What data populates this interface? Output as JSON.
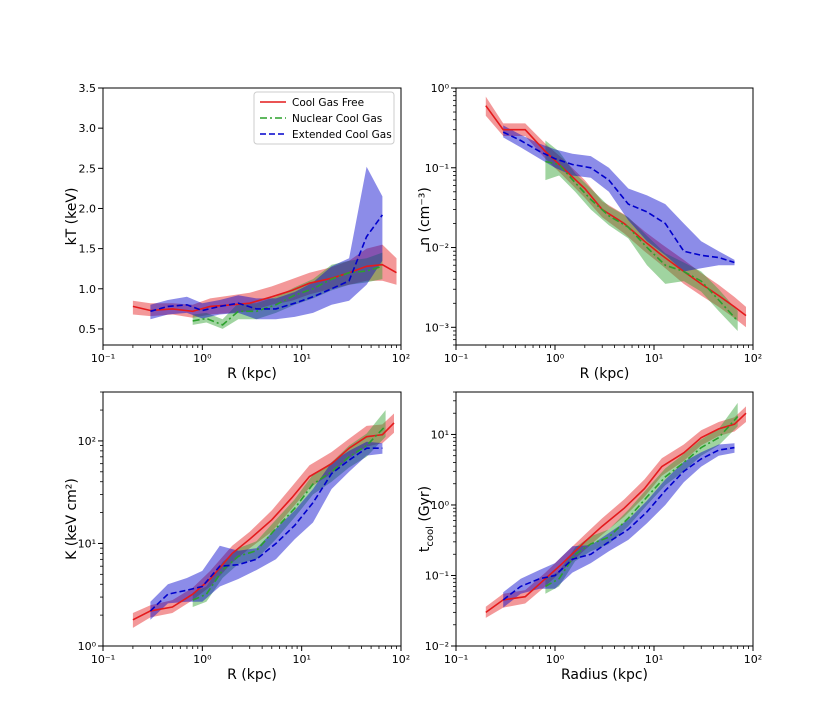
{
  "chart_data": [
    {
      "type": "line",
      "id": "kT",
      "xscale": "log",
      "yscale": "linear",
      "xlim": [
        0.1,
        100
      ],
      "ylim": [
        0.3,
        3.5
      ],
      "xlabel": "R (kpc)",
      "ylabel": "kT (keV)",
      "yticks": [
        0.5,
        1.0,
        1.5,
        2.0,
        2.5,
        3.0,
        3.5
      ],
      "ytick_labels": [
        "0.5",
        "1.0",
        "1.5",
        "2.0",
        "2.5",
        "3.0",
        "3.5"
      ],
      "legend": {
        "placement": "top-right",
        "entries": [
          {
            "label": "Cool Gas Free",
            "color": "#e41a1c",
            "dash": "solid"
          },
          {
            "label": "Nuclear Cool Gas",
            "color": "#2ca02c",
            "dash": "dashdot"
          },
          {
            "label": "Extended Cool Gas",
            "color": "#0000cc",
            "dash": "dashed"
          }
        ]
      },
      "series": [
        {
          "name": "Cool Gas Free",
          "color": "#e41a1c",
          "dash": "solid",
          "x": [
            0.2,
            0.3,
            0.5,
            0.8,
            1.2,
            2.0,
            3.0,
            5.0,
            8.0,
            12,
            20,
            30,
            45,
            65,
            90
          ],
          "y": [
            0.78,
            0.73,
            0.75,
            0.72,
            0.78,
            0.8,
            0.82,
            0.9,
            0.98,
            1.07,
            1.13,
            1.2,
            1.28,
            1.3,
            1.2
          ],
          "lo": [
            0.68,
            0.66,
            0.68,
            0.64,
            0.68,
            0.7,
            0.72,
            0.8,
            0.85,
            0.93,
            1.0,
            1.05,
            1.1,
            1.1,
            1.05
          ],
          "hi": [
            0.85,
            0.82,
            0.82,
            0.8,
            0.88,
            0.92,
            0.95,
            1.03,
            1.12,
            1.2,
            1.27,
            1.35,
            1.5,
            1.55,
            1.38
          ]
        },
        {
          "name": "Nuclear Cool Gas",
          "color": "#2ca02c",
          "dash": "dashdot",
          "x": [
            0.8,
            1.1,
            1.6,
            2.3,
            3.5,
            5.5,
            8.5,
            13,
            20,
            30,
            45,
            65
          ],
          "y": [
            0.6,
            0.63,
            0.55,
            0.72,
            0.72,
            0.8,
            0.92,
            1.0,
            1.12,
            1.2,
            1.22,
            1.28
          ],
          "lo": [
            0.55,
            0.58,
            0.5,
            0.62,
            0.62,
            0.7,
            0.8,
            0.88,
            0.98,
            1.05,
            1.08,
            1.12
          ],
          "hi": [
            0.68,
            0.7,
            0.62,
            0.82,
            0.82,
            0.9,
            1.02,
            1.12,
            1.3,
            1.35,
            1.38,
            1.45
          ]
        },
        {
          "name": "Extended Cool Gas",
          "color": "#0000cc",
          "dash": "dashed",
          "x": [
            0.3,
            0.45,
            0.7,
            1.0,
            1.5,
            2.3,
            3.5,
            5.5,
            8.5,
            13,
            20,
            30,
            45,
            65
          ],
          "y": [
            0.72,
            0.78,
            0.8,
            0.73,
            0.78,
            0.82,
            0.75,
            0.75,
            0.82,
            0.9,
            1.0,
            1.1,
            1.65,
            1.92
          ],
          "lo": [
            0.62,
            0.68,
            0.7,
            0.63,
            0.68,
            0.7,
            0.62,
            0.62,
            0.65,
            0.7,
            0.8,
            0.85,
            1.05,
            1.35
          ],
          "hi": [
            0.8,
            0.86,
            0.9,
            0.82,
            0.86,
            0.92,
            0.88,
            0.88,
            0.96,
            1.08,
            1.28,
            1.38,
            2.52,
            2.15
          ]
        }
      ]
    },
    {
      "type": "line",
      "id": "density",
      "xscale": "log",
      "yscale": "log",
      "xlim": [
        0.1,
        100
      ],
      "ylim": [
        0.0006,
        1
      ],
      "xlabel": "R (kpc)",
      "ylabel": "n (cm⁻³)",
      "yticks": [
        0.001,
        0.01,
        0.1,
        1
      ],
      "ytick_labels": [
        "10⁻³",
        "10⁻²",
        "10⁻¹",
        "10⁰"
      ],
      "series": [
        {
          "name": "Cool Gas Free",
          "color": "#e41a1c",
          "dash": "solid",
          "x": [
            0.2,
            0.3,
            0.5,
            0.8,
            1.2,
            2.0,
            3.0,
            5.0,
            8.0,
            12,
            20,
            30,
            45,
            65,
            85
          ],
          "y": [
            0.6,
            0.3,
            0.3,
            0.16,
            0.1,
            0.055,
            0.03,
            0.02,
            0.012,
            0.008,
            0.005,
            0.0035,
            0.0025,
            0.0018,
            0.0014
          ],
          "lo": [
            0.45,
            0.25,
            0.25,
            0.13,
            0.08,
            0.042,
            0.024,
            0.015,
            0.009,
            0.006,
            0.0035,
            0.0025,
            0.0018,
            0.0013,
            0.001
          ],
          "hi": [
            0.78,
            0.36,
            0.36,
            0.2,
            0.13,
            0.07,
            0.038,
            0.026,
            0.016,
            0.011,
            0.007,
            0.0048,
            0.0034,
            0.0024,
            0.0018
          ]
        },
        {
          "name": "Nuclear Cool Gas",
          "color": "#2ca02c",
          "dash": "dashdot",
          "x": [
            0.8,
            1.1,
            1.6,
            2.3,
            3.5,
            5.5,
            8.5,
            13,
            20,
            30,
            45,
            70
          ],
          "y": [
            0.12,
            0.11,
            0.065,
            0.04,
            0.025,
            0.018,
            0.01,
            0.006,
            0.005,
            0.0038,
            0.0022,
            0.0012
          ],
          "lo": [
            0.07,
            0.08,
            0.05,
            0.03,
            0.019,
            0.013,
            0.006,
            0.0035,
            0.0038,
            0.0028,
            0.0016,
            0.0009
          ],
          "hi": [
            0.22,
            0.16,
            0.085,
            0.055,
            0.033,
            0.024,
            0.014,
            0.0085,
            0.0065,
            0.005,
            0.003,
            0.0016
          ]
        },
        {
          "name": "Extended Cool Gas",
          "color": "#0000cc",
          "dash": "dashed",
          "x": [
            0.3,
            0.45,
            0.7,
            1.0,
            1.5,
            2.3,
            3.5,
            5.5,
            8.5,
            13,
            20,
            30,
            45,
            65
          ],
          "y": [
            0.28,
            0.22,
            0.16,
            0.13,
            0.11,
            0.1,
            0.07,
            0.035,
            0.028,
            0.02,
            0.009,
            0.008,
            0.0075,
            0.0065
          ],
          "lo": [
            0.24,
            0.18,
            0.13,
            0.1,
            0.08,
            0.075,
            0.05,
            0.022,
            0.012,
            0.008,
            0.005,
            0.0055,
            0.006,
            0.006
          ],
          "hi": [
            0.34,
            0.26,
            0.2,
            0.17,
            0.15,
            0.14,
            0.1,
            0.055,
            0.045,
            0.035,
            0.02,
            0.012,
            0.009,
            0.007
          ]
        }
      ]
    },
    {
      "type": "line",
      "id": "entropy",
      "xscale": "log",
      "yscale": "log",
      "xlim": [
        0.1,
        100
      ],
      "ylim": [
        1,
        300
      ],
      "xlabel": "R (kpc)",
      "ylabel": "K (keV cm²)",
      "yticks": [
        1,
        10,
        100
      ],
      "ytick_labels": [
        "10⁰",
        "10¹",
        "10²"
      ],
      "series": [
        {
          "name": "Cool Gas Free",
          "color": "#e41a1c",
          "dash": "solid",
          "x": [
            0.2,
            0.3,
            0.5,
            0.8,
            1.2,
            2.0,
            3.0,
            5.0,
            8.0,
            12,
            20,
            30,
            45,
            65,
            85
          ],
          "y": [
            1.8,
            2.2,
            2.4,
            3.2,
            4.5,
            8,
            11,
            17,
            28,
            45,
            60,
            85,
            110,
            115,
            150
          ],
          "lo": [
            1.5,
            1.9,
            2.1,
            2.8,
            3.8,
            6.5,
            9,
            13,
            22,
            35,
            48,
            68,
            88,
            95,
            120
          ],
          "hi": [
            2.1,
            2.5,
            2.8,
            3.7,
            5.4,
            9.5,
            13,
            21,
            36,
            58,
            78,
            105,
            140,
            145,
            185
          ]
        },
        {
          "name": "Nuclear Cool Gas",
          "color": "#2ca02c",
          "dash": "dashdot",
          "x": [
            0.8,
            1.1,
            1.6,
            2.3,
            3.5,
            5.5,
            8.5,
            13,
            20,
            30,
            45,
            70
          ],
          "y": [
            2.8,
            3.2,
            5.5,
            7.5,
            8.5,
            14,
            22,
            38,
            50,
            70,
            90,
            140
          ],
          "lo": [
            2.4,
            2.7,
            4.6,
            6.3,
            7,
            11,
            18,
            30,
            40,
            55,
            70,
            110
          ],
          "hi": [
            3.3,
            3.8,
            6.6,
            9,
            10.5,
            17,
            27,
            47,
            62,
            90,
            118,
            200
          ]
        },
        {
          "name": "Extended Cool Gas",
          "color": "#0000cc",
          "dash": "dashed",
          "x": [
            0.3,
            0.45,
            0.7,
            1.0,
            1.5,
            2.3,
            3.5,
            5.5,
            8.5,
            13,
            20,
            30,
            45,
            65
          ],
          "y": [
            2.2,
            3.2,
            3.5,
            3.8,
            6,
            6.2,
            7,
            10,
            15,
            25,
            48,
            65,
            85,
            85
          ],
          "lo": [
            1.8,
            2.6,
            2.7,
            2.7,
            3.8,
            4.5,
            5.5,
            7,
            11,
            16,
            34,
            50,
            72,
            75
          ],
          "hi": [
            2.7,
            4,
            4.6,
            5.4,
            9.5,
            8.5,
            9,
            14,
            21,
            34,
            62,
            80,
            98,
            95
          ]
        }
      ]
    },
    {
      "type": "line",
      "id": "tcool",
      "xscale": "log",
      "yscale": "log",
      "xlim": [
        0.1,
        100
      ],
      "ylim": [
        0.01,
        40
      ],
      "xlabel": "Radius (kpc)",
      "ylabel": "t_cool (Gyr)",
      "yticks": [
        0.01,
        0.1,
        1,
        10
      ],
      "ytick_labels": [
        "10⁻²",
        "10⁻¹",
        "10⁰",
        "10¹"
      ],
      "series": [
        {
          "name": "Cool Gas Free",
          "color": "#e41a1c",
          "dash": "solid",
          "x": [
            0.2,
            0.3,
            0.5,
            0.8,
            1.2,
            2.0,
            3.0,
            5.0,
            8.0,
            12,
            20,
            30,
            45,
            65,
            85
          ],
          "y": [
            0.03,
            0.045,
            0.05,
            0.09,
            0.15,
            0.3,
            0.5,
            0.9,
            1.7,
            3.5,
            5.5,
            9,
            12,
            14,
            20
          ],
          "lo": [
            0.025,
            0.035,
            0.04,
            0.07,
            0.12,
            0.23,
            0.38,
            0.68,
            1.3,
            2.6,
            4.2,
            7,
            9.5,
            11,
            15
          ],
          "hi": [
            0.036,
            0.055,
            0.062,
            0.11,
            0.19,
            0.38,
            0.65,
            1.2,
            2.3,
            4.6,
            7.2,
            11.5,
            15,
            17.5,
            25
          ]
        },
        {
          "name": "Nuclear Cool Gas",
          "color": "#2ca02c",
          "dash": "dashdot",
          "x": [
            0.8,
            1.1,
            1.6,
            2.3,
            3.5,
            5.5,
            8.5,
            13,
            20,
            30,
            45,
            70
          ],
          "y": [
            0.07,
            0.09,
            0.2,
            0.28,
            0.35,
            0.65,
            1.3,
            2.5,
            4,
            6.5,
            9,
            18
          ],
          "lo": [
            0.055,
            0.07,
            0.16,
            0.22,
            0.28,
            0.5,
            1.0,
            1.9,
            3,
            5,
            7,
            13
          ],
          "hi": [
            0.09,
            0.115,
            0.25,
            0.36,
            0.45,
            0.85,
            1.7,
            3.3,
            5.3,
            8.5,
            12,
            28
          ]
        },
        {
          "name": "Extended Cool Gas",
          "color": "#0000cc",
          "dash": "dashed",
          "x": [
            0.3,
            0.45,
            0.7,
            1.0,
            1.5,
            2.3,
            3.5,
            5.5,
            8.5,
            13,
            20,
            30,
            45,
            65
          ],
          "y": [
            0.045,
            0.07,
            0.09,
            0.1,
            0.17,
            0.2,
            0.3,
            0.45,
            0.8,
            1.6,
            3,
            4.5,
            6,
            6.5
          ],
          "lo": [
            0.035,
            0.055,
            0.065,
            0.065,
            0.11,
            0.15,
            0.22,
            0.32,
            0.55,
            1.0,
            2.1,
            3.5,
            5,
            5.5
          ],
          "hi": [
            0.058,
            0.09,
            0.12,
            0.15,
            0.26,
            0.27,
            0.4,
            0.62,
            1.15,
            2.3,
            4.1,
            5.6,
            7.2,
            7.5
          ]
        }
      ]
    }
  ],
  "xtick_labels": [
    "10⁻¹",
    "10⁰",
    "10¹",
    "10²"
  ]
}
